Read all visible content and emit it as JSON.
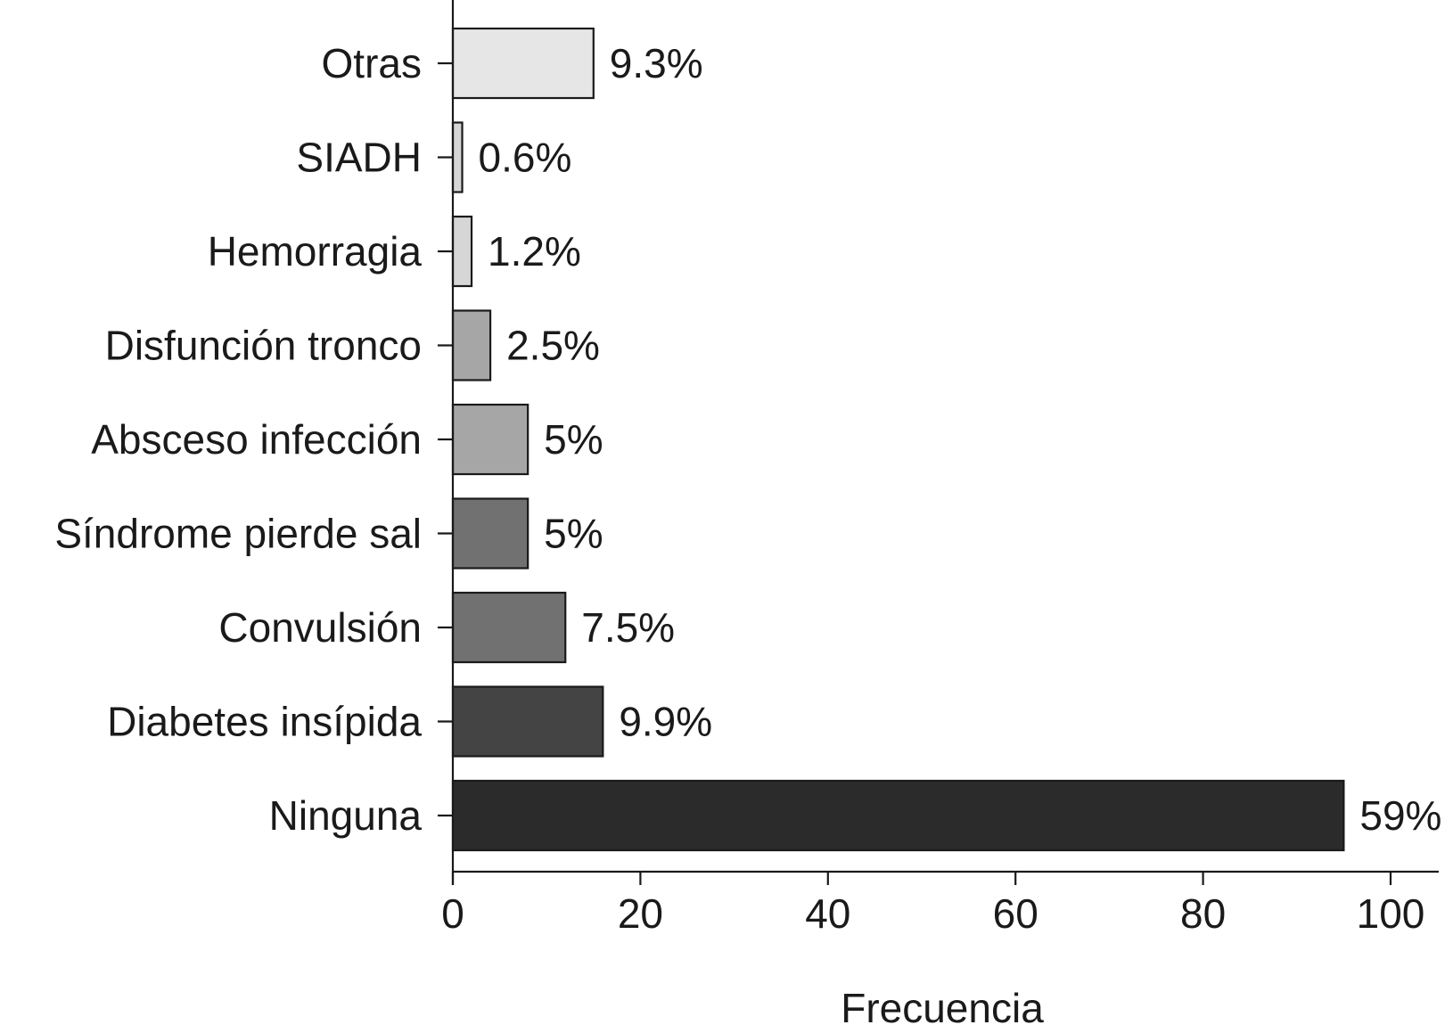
{
  "chart_data": {
    "type": "bar",
    "orientation": "horizontal",
    "categories": [
      "Ninguna",
      "Diabetes insípida",
      "Convulsión",
      "Síndrome pierde sal",
      "Absceso infección",
      "Disfunción tronco",
      "Hemorragia",
      "SIADH",
      "Otras"
    ],
    "values": [
      95,
      16,
      12,
      8,
      8,
      4,
      2,
      1,
      15
    ],
    "data_labels": [
      "59%",
      "9.9%",
      "7.5%",
      "5%",
      "5%",
      "2.5%",
      "1.2%",
      "0.6%",
      "9.3%"
    ],
    "bar_colors": [
      "#2b2b2b",
      "#444444",
      "#717171",
      "#717171",
      "#a6a6a6",
      "#a6a6a6",
      "#d6d6d6",
      "#d6d6d6",
      "#e6e6e6"
    ],
    "title": "",
    "xlabel": "Frecuencia",
    "ylabel": "",
    "xlim": [
      0,
      105
    ],
    "xticks": [
      0,
      20,
      40,
      60,
      80,
      100
    ],
    "xtick_labels": [
      "0",
      "20",
      "40",
      "60",
      "80",
      "100"
    ],
    "grid": false,
    "legend": "none"
  }
}
